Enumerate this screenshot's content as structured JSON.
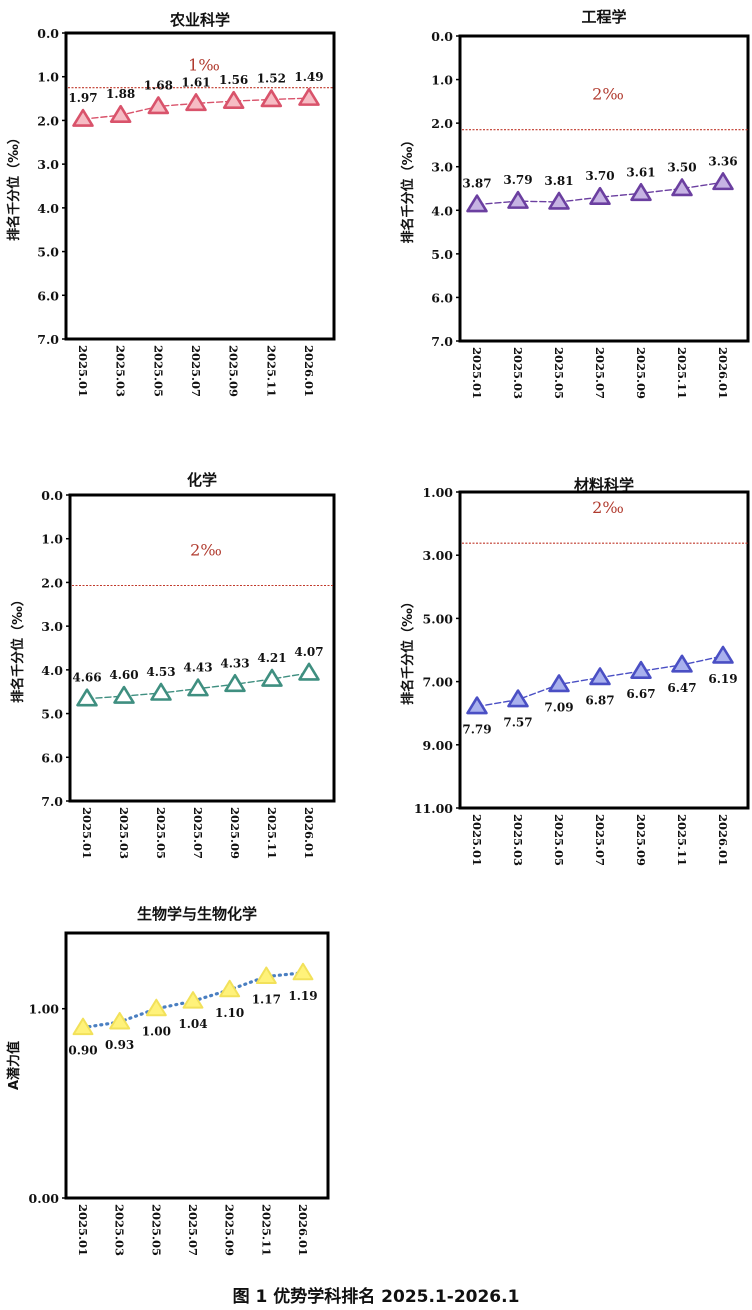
{
  "caption": "图 1 优势学科排名 2025.1-2026.1",
  "chart_data": [
    {
      "type": "line",
      "title": "农业科学",
      "ylabel": "排名千分位（‰）",
      "categories": [
        "2025.01",
        "2025.03",
        "2025.05",
        "2025.07",
        "2025.09",
        "2025.11",
        "2026.01"
      ],
      "values": [
        1.97,
        1.88,
        1.68,
        1.61,
        1.56,
        1.52,
        1.49
      ],
      "value_labels": [
        "1.97",
        "1.88",
        "1.68",
        "1.61",
        "1.56",
        "1.52",
        "1.49"
      ],
      "yticks": [
        "0.0",
        "1.0",
        "2.0",
        "3.0",
        "4.0",
        "5.0",
        "6.0",
        "7.0"
      ],
      "ylim": [
        0,
        7
      ],
      "y_inverted": true,
      "reference_value": 1.25,
      "reference_label": "1‰",
      "color": "#d9536b",
      "fill": "#f6bcc4",
      "label_position": "above"
    },
    {
      "type": "line",
      "title": "工程学",
      "ylabel": "排名千分位（‰）",
      "categories": [
        "2025.01",
        "2025.03",
        "2025.05",
        "2025.07",
        "2025.09",
        "2025.11",
        "2026.01"
      ],
      "values": [
        3.87,
        3.79,
        3.81,
        3.7,
        3.61,
        3.5,
        3.36
      ],
      "value_labels": [
        "3.87",
        "3.79",
        "3.81",
        "3.70",
        "3.61",
        "3.50",
        "3.36"
      ],
      "yticks": [
        "0.0",
        "1.0",
        "2.0",
        "3.0",
        "4.0",
        "5.0",
        "6.0",
        "7.0"
      ],
      "ylim": [
        0,
        7
      ],
      "y_inverted": true,
      "reference_value": 2.15,
      "reference_label": "2‰",
      "color": "#6b3fa0",
      "fill": "#c6b3e3",
      "label_position": "above"
    },
    {
      "type": "line",
      "title": "化学",
      "ylabel": "排名千分位（‰）",
      "categories": [
        "2025.01",
        "2025.03",
        "2025.05",
        "2025.07",
        "2025.09",
        "2025.11",
        "2026.01"
      ],
      "values": [
        4.66,
        4.6,
        4.53,
        4.43,
        4.33,
        4.21,
        4.07
      ],
      "value_labels": [
        "4.66",
        "4.60",
        "4.53",
        "4.43",
        "4.33",
        "4.21",
        "4.07"
      ],
      "yticks": [
        "0.0",
        "1.0",
        "2.0",
        "3.0",
        "4.0",
        "5.0",
        "6.0",
        "7.0"
      ],
      "ylim": [
        0,
        7
      ],
      "y_inverted": true,
      "reference_value": 2.07,
      "reference_label": "2‰",
      "color": "#3f8f80",
      "fill": "#ffffff",
      "label_position": "above"
    },
    {
      "type": "line",
      "title": "材料科学",
      "ylabel": "排名千分位（‰）",
      "categories": [
        "2025.01",
        "2025.03",
        "2025.05",
        "2025.07",
        "2025.09",
        "2025.11",
        "2026.01"
      ],
      "values": [
        7.79,
        7.57,
        7.09,
        6.87,
        6.67,
        6.47,
        6.19
      ],
      "value_labels": [
        "7.79",
        "7.57",
        "7.09",
        "6.87",
        "6.67",
        "6.47",
        "6.19"
      ],
      "yticks": [
        "1.00",
        "3.00",
        "5.00",
        "7.00",
        "9.00",
        "11.00"
      ],
      "ylim": [
        1,
        11
      ],
      "y_inverted": true,
      "reference_value": 2.62,
      "reference_label": "2‰",
      "color": "#4a4fc4",
      "fill": "#a9b1ee",
      "label_position": "below"
    },
    {
      "type": "line",
      "title": "生物学与生物化学",
      "ylabel": "A潜力值",
      "categories": [
        "2025.01",
        "2025.03",
        "2025.05",
        "2025.07",
        "2025.09",
        "2025.11",
        "2026.01"
      ],
      "values": [
        0.9,
        0.93,
        1.0,
        1.04,
        1.1,
        1.17,
        1.19
      ],
      "value_labels": [
        "0.90",
        "0.93",
        "1.00",
        "1.04",
        "1.10",
        "1.17",
        "1.19"
      ],
      "yticks": [
        "0.00",
        "1.00"
      ],
      "ytick_values": [
        0,
        1
      ],
      "ylim": [
        0,
        1.4
      ],
      "y_inverted": false,
      "reference_value": null,
      "reference_label": "",
      "color": "#4a7fc1",
      "fill": "#fff27a",
      "label_position": "below"
    }
  ]
}
